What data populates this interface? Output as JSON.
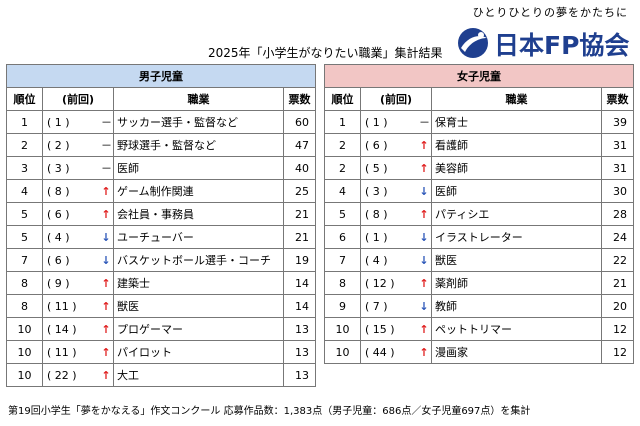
{
  "header": {
    "tagline": "ひとりひとりの夢をかたちに",
    "logo_text": "日本FP協会",
    "title": "2025年「小学生がなりたい職業」集計結果"
  },
  "columns": {
    "rank": "順位",
    "prev": "(前回)",
    "job": "職業",
    "votes": "票数"
  },
  "boys": {
    "heading": "男子児童",
    "rows": [
      {
        "rank": "1",
        "prev": "( 1 )",
        "mark": "－",
        "trend": "same",
        "job": "サッカー選手・監督など",
        "votes": "60"
      },
      {
        "rank": "2",
        "prev": "( 2 )",
        "mark": "－",
        "trend": "same",
        "job": "野球選手・監督など",
        "votes": "47"
      },
      {
        "rank": "3",
        "prev": "( 3 )",
        "mark": "－",
        "trend": "same",
        "job": "医師",
        "votes": "40"
      },
      {
        "rank": "4",
        "prev": "( 8 )",
        "mark": "↑",
        "trend": "up",
        "job": "ゲーム制作関連",
        "votes": "25"
      },
      {
        "rank": "5",
        "prev": "( 6 )",
        "mark": "↑",
        "trend": "up",
        "job": "会社員・事務員",
        "votes": "21"
      },
      {
        "rank": "5",
        "prev": "( 4 )",
        "mark": "↓",
        "trend": "down",
        "job": "ユーチューバー",
        "votes": "21"
      },
      {
        "rank": "7",
        "prev": "( 6 )",
        "mark": "↓",
        "trend": "down",
        "job": "バスケットボール選手・コーチ",
        "votes": "19"
      },
      {
        "rank": "8",
        "prev": "( 9 )",
        "mark": "↑",
        "trend": "up",
        "job": "建築士",
        "votes": "14"
      },
      {
        "rank": "8",
        "prev": "( 11 )",
        "mark": "↑",
        "trend": "up",
        "job": "獣医",
        "votes": "14"
      },
      {
        "rank": "10",
        "prev": "( 14 )",
        "mark": "↑",
        "trend": "up",
        "job": "プロゲーマー",
        "votes": "13"
      },
      {
        "rank": "10",
        "prev": "( 11 )",
        "mark": "↑",
        "trend": "up",
        "job": "パイロット",
        "votes": "13"
      },
      {
        "rank": "10",
        "prev": "( 22 )",
        "mark": "↑",
        "trend": "up",
        "job": "大工",
        "votes": "13"
      }
    ]
  },
  "girls": {
    "heading": "女子児童",
    "rows": [
      {
        "rank": "1",
        "prev": "( 1 )",
        "mark": "－",
        "trend": "same",
        "job": "保育士",
        "votes": "39"
      },
      {
        "rank": "2",
        "prev": "( 6 )",
        "mark": "↑",
        "trend": "up",
        "job": "看護師",
        "votes": "31"
      },
      {
        "rank": "2",
        "prev": "( 5 )",
        "mark": "↑",
        "trend": "up",
        "job": "美容師",
        "votes": "31"
      },
      {
        "rank": "4",
        "prev": "( 3 )",
        "mark": "↓",
        "trend": "down",
        "job": "医師",
        "votes": "30"
      },
      {
        "rank": "5",
        "prev": "( 8 )",
        "mark": "↑",
        "trend": "up",
        "job": "パティシエ",
        "votes": "28"
      },
      {
        "rank": "6",
        "prev": "( 1 )",
        "mark": "↓",
        "trend": "down",
        "job": "イラストレーター",
        "votes": "24"
      },
      {
        "rank": "7",
        "prev": "( 4 )",
        "mark": "↓",
        "trend": "down",
        "job": "獣医",
        "votes": "22"
      },
      {
        "rank": "8",
        "prev": "( 12 )",
        "mark": "↑",
        "trend": "up",
        "job": "薬剤師",
        "votes": "21"
      },
      {
        "rank": "9",
        "prev": "( 7 )",
        "mark": "↓",
        "trend": "down",
        "job": "教師",
        "votes": "20"
      },
      {
        "rank": "10",
        "prev": "( 15 )",
        "mark": "↑",
        "trend": "up",
        "job": "ペットトリマー",
        "votes": "12"
      },
      {
        "rank": "10",
        "prev": "( 44 )",
        "mark": "↑",
        "trend": "up",
        "job": "漫画家",
        "votes": "12"
      }
    ]
  },
  "footer": "第19回小学生「夢をかなえる」作文コンクール 応募作品数：1,383点（男子児童：686点／女子児童697点）を集計",
  "colors": {
    "boys_header": "#c5d9f1",
    "girls_header": "#f2c6c5",
    "up": "#e02020",
    "down": "#2b56b8",
    "logo": "#1f3f8f"
  },
  "icons": {
    "logo_mark": "globe-swoosh-icon",
    "up": "arrow-up-icon",
    "down": "arrow-down-icon",
    "same": "dash-icon"
  }
}
